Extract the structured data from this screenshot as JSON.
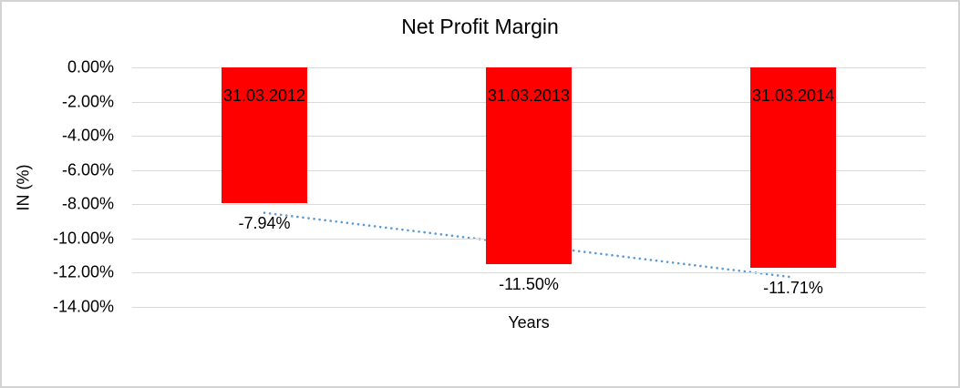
{
  "chart": {
    "title": "Net Profit Margin",
    "y_axis_title": "IN (%)",
    "x_axis_title": "Years",
    "y_ticks": [
      "0.00%",
      "-2.00%",
      "-4.00%",
      "-6.00%",
      "-8.00%",
      "-10.00%",
      "-12.00%",
      "-14.00%"
    ]
  },
  "chart_data": {
    "type": "bar",
    "title": "Net Profit Margin",
    "xlabel": "Years",
    "ylabel": "IN (%)",
    "categories": [
      "31.03.2012",
      "31.03.2013",
      "31.03.2014"
    ],
    "values": [
      -7.94,
      -11.5,
      -11.71
    ],
    "data_labels": [
      "-7.94%",
      "-11.50%",
      "-11.71%"
    ],
    "ylim": [
      -14,
      0
    ],
    "y_tick_step": 2,
    "grid": true,
    "legend": false,
    "bar_color": "#ff0000",
    "gridline_color": "#d9d9d9",
    "trendline": {
      "type": "linear",
      "style": "dotted",
      "color": "#5b9bd5"
    }
  }
}
